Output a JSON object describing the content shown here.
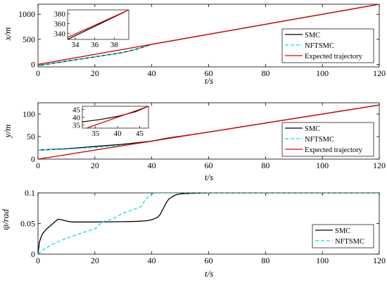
{
  "chart_data": [
    {
      "type": "line",
      "ylabel": "x/m",
      "xlabel": "t/s",
      "xlim": [
        0,
        120
      ],
      "ylim": [
        -50,
        1200
      ],
      "xticks": [
        "0",
        "20",
        "40",
        "60",
        "80",
        "100",
        "120"
      ],
      "yticks": [
        "0",
        "500",
        "1000"
      ],
      "legend_position": "right",
      "series": [
        {
          "name": "SMC",
          "color": "#000000",
          "dash": "solid",
          "x": [
            0,
            5,
            10,
            15,
            20,
            25,
            30,
            35,
            40,
            60,
            80,
            100,
            120
          ],
          "y": [
            -25,
            19,
            63,
            106,
            150,
            194,
            238,
            310,
            400,
            600,
            800,
            1000,
            1200
          ]
        },
        {
          "name": "NFTSMC",
          "color": "#00e0e0",
          "dash": "dashed",
          "x": [
            0,
            5,
            10,
            15,
            20,
            25,
            30,
            35,
            40,
            60,
            80,
            100,
            120
          ],
          "y": [
            -25,
            20,
            64,
            108,
            152,
            196,
            240,
            312,
            400,
            600,
            800,
            1000,
            1200
          ]
        },
        {
          "name": "Expected trajectory",
          "color": "#e00000",
          "dash": "solid",
          "x": [
            0,
            120
          ],
          "y": [
            0,
            1200
          ]
        }
      ],
      "inset": {
        "xlim": [
          33.2,
          39.5
        ],
        "ylim": [
          328,
          388
        ],
        "xticks": [
          "34",
          "36",
          "38"
        ],
        "yticks": [
          "340",
          "360",
          "380"
        ],
        "series": [
          {
            "name": "SMC",
            "x": [
              33.2,
              39.2
            ],
            "y": [
              328,
              385
            ]
          },
          {
            "name": "Expected trajectory",
            "x": [
              33.2,
              39.5
            ],
            "y": [
              332,
              388
            ]
          }
        ]
      }
    },
    {
      "type": "line",
      "ylabel": "y/m",
      "xlabel": "t/s",
      "xlim": [
        0,
        120
      ],
      "ylim": [
        0,
        125
      ],
      "xticks": [
        "0",
        "20",
        "40",
        "60",
        "80",
        "100",
        "120"
      ],
      "yticks": [
        "0",
        "50",
        "100"
      ],
      "legend_position": "right",
      "series": [
        {
          "name": "SMC",
          "color": "#000000",
          "dash": "solid",
          "x": [
            0,
            10,
            20,
            30,
            40,
            46,
            60,
            80,
            100,
            120
          ],
          "y": [
            20,
            23,
            28,
            33,
            40,
            47,
            60,
            80,
            100,
            120
          ]
        },
        {
          "name": "NFTSMC",
          "color": "#00e0e0",
          "dash": "dashed",
          "x": [
            0,
            10,
            20,
            30,
            40,
            46,
            60,
            80,
            100,
            120
          ],
          "y": [
            20,
            22,
            26,
            31,
            39,
            46,
            60,
            80,
            100,
            120
          ]
        },
        {
          "name": "Expected trajectory",
          "color": "#e00000",
          "dash": "solid",
          "x": [
            0,
            120
          ],
          "y": [
            0,
            120
          ]
        }
      ],
      "inset": {
        "xlim": [
          32,
          47
        ],
        "ylim": [
          33,
          47
        ],
        "xticks": [
          "35",
          "40",
          "45"
        ],
        "yticks": [
          "35",
          "40",
          "45"
        ],
        "series": [
          {
            "name": "SMC",
            "x": [
              32,
              36,
              40,
              44,
              47
            ],
            "y": [
              37,
              38.5,
              40.5,
              43.5,
              47
            ]
          },
          {
            "name": "Expected trajectory",
            "x": [
              32,
              47
            ],
            "y": [
              32,
              47
            ]
          }
        ]
      }
    },
    {
      "type": "line",
      "ylabel": "ψ/rad",
      "xlabel": "t/s",
      "xlim": [
        0,
        120
      ],
      "ylim": [
        0,
        0.1
      ],
      "xticks": [
        "0",
        "20",
        "40",
        "60",
        "80",
        "100",
        "120"
      ],
      "yticks": [
        "0",
        "0.05",
        "0.1"
      ],
      "legend_position": "right",
      "series": [
        {
          "name": "SMC",
          "color": "#000000",
          "dash": "solid",
          "x": [
            0,
            0.5,
            1.5,
            3,
            5,
            7,
            8,
            10,
            12,
            15,
            20,
            25,
            30,
            35,
            38,
            40,
            42,
            43,
            44,
            45,
            46,
            48,
            50,
            55,
            60,
            120
          ],
          "y": [
            0,
            0.02,
            0.033,
            0.041,
            0.049,
            0.057,
            0.0565,
            0.054,
            0.0525,
            0.0525,
            0.0525,
            0.0527,
            0.053,
            0.0535,
            0.0545,
            0.056,
            0.06,
            0.065,
            0.074,
            0.083,
            0.09,
            0.096,
            0.0985,
            0.0995,
            0.1,
            0.1
          ]
        },
        {
          "name": "NFTSMC",
          "color": "#00e0e0",
          "dash": "dashed",
          "x": [
            0,
            2,
            5,
            10,
            15,
            20,
            22,
            24,
            26,
            28,
            30,
            33,
            36,
            38,
            40,
            41,
            120
          ],
          "y": [
            0,
            0.008,
            0.016,
            0.026,
            0.034,
            0.041,
            0.05,
            0.055,
            0.057,
            0.062,
            0.067,
            0.072,
            0.077,
            0.09,
            0.098,
            0.1,
            0.1
          ]
        }
      ]
    }
  ]
}
